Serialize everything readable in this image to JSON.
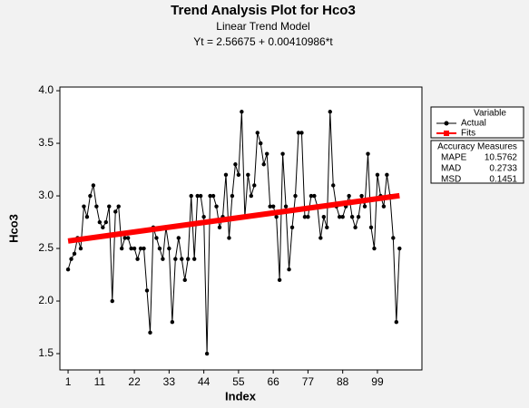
{
  "chart_data": {
    "type": "line",
    "title": "Trend Analysis Plot for Hco3",
    "subtitle": "Linear Trend Model",
    "equation": "Yt = 2.56675 + 0.00410986*t",
    "x_label": "Index",
    "y_label": "Hco3",
    "xlim": [
      -1.6,
      113.1
    ],
    "ylim": [
      1.345,
      4.035
    ],
    "xticks": [
      1,
      11,
      22,
      33,
      44,
      55,
      66,
      77,
      88,
      99
    ],
    "yticks": [
      {
        "value": 1.5,
        "label": "1.5"
      },
      {
        "value": 2,
        "label": "2.0"
      },
      2.5,
      {
        "value": 3,
        "label": "3.0"
      },
      3.5,
      {
        "value": 4,
        "label": "4.0"
      }
    ],
    "legend_title": "Variable",
    "series": [
      {
        "name": "Actual",
        "color": "#000000",
        "x": [
          1,
          2,
          3,
          4,
          5,
          6,
          7,
          8,
          9,
          10,
          11,
          12,
          13,
          14,
          15,
          16,
          17,
          18,
          19,
          20,
          21,
          22,
          23,
          24,
          25,
          26,
          27,
          28,
          29,
          30,
          31,
          32,
          33,
          34,
          35,
          36,
          37,
          38,
          39,
          40,
          41,
          42,
          43,
          44,
          45,
          46,
          47,
          48,
          49,
          50,
          51,
          52,
          53,
          54,
          55,
          56,
          57,
          58,
          59,
          60,
          61,
          62,
          63,
          64,
          65,
          66,
          67,
          68,
          69,
          70,
          71,
          72,
          73,
          74,
          75,
          76,
          77,
          78,
          79,
          80,
          81,
          82,
          83,
          84,
          85,
          86,
          87,
          88,
          89,
          90,
          91,
          92,
          93,
          94,
          95,
          96,
          97,
          98,
          99,
          100,
          101,
          102,
          103,
          104,
          105,
          106
        ],
        "values": [
          2.3,
          2.4,
          2.45,
          2.6,
          2.5,
          2.9,
          2.8,
          3.0,
          3.1,
          2.9,
          2.75,
          2.7,
          2.75,
          2.9,
          2.0,
          2.85,
          2.9,
          2.5,
          2.6,
          2.6,
          2.5,
          2.5,
          2.4,
          2.5,
          2.5,
          2.1,
          1.7,
          2.7,
          2.6,
          2.5,
          2.4,
          2.7,
          2.5,
          1.8,
          2.4,
          2.6,
          2.4,
          2.2,
          2.4,
          3.0,
          2.4,
          3.0,
          3.0,
          2.8,
          1.5,
          3.0,
          3.0,
          2.9,
          2.7,
          2.8,
          3.2,
          2.6,
          3.0,
          3.3,
          3.2,
          3.8,
          2.8,
          3.2,
          3.0,
          3.1,
          3.6,
          3.5,
          3.3,
          3.4,
          2.9,
          2.9,
          2.8,
          2.2,
          3.4,
          2.9,
          2.3,
          2.7,
          3.0,
          3.6,
          3.6,
          2.8,
          2.8,
          3.0,
          3.0,
          2.9,
          2.6,
          2.8,
          2.7,
          3.8,
          3.1,
          2.9,
          2.8,
          2.8,
          2.9,
          3.0,
          2.8,
          2.7,
          2.8,
          3.0,
          2.9,
          3.4,
          2.7,
          2.5,
          3.2,
          3.0,
          2.9,
          3.2,
          3.0,
          2.6,
          1.8,
          2.5
        ]
      },
      {
        "name": "Fits",
        "color": "#ff0000",
        "x": [
          1,
          106
        ],
        "values": [
          2.571,
          3.002
        ]
      }
    ],
    "accuracy": {
      "title": "Accuracy Measures",
      "rows": [
        {
          "name": "MAPE",
          "value": 10.5762
        },
        {
          "name": "MAD",
          "value": 0.2733
        },
        {
          "name": "MSD",
          "value": 0.1451
        }
      ]
    }
  }
}
